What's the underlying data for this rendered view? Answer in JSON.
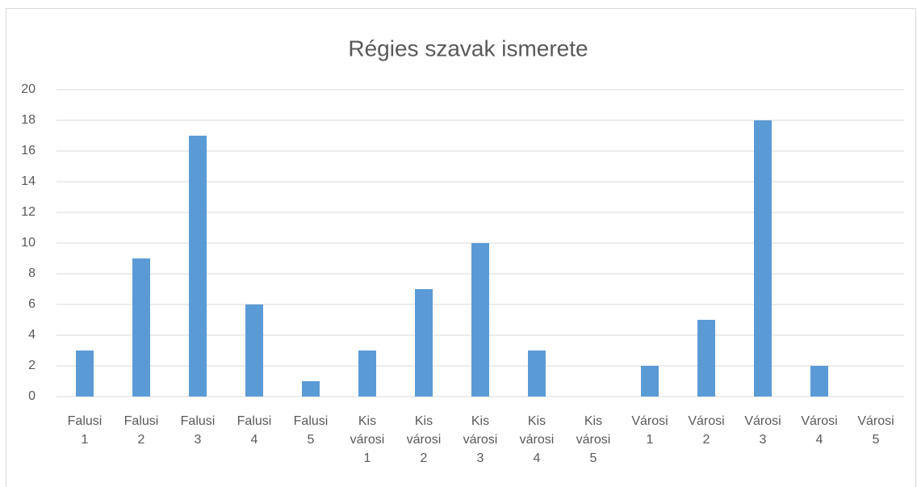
{
  "chart_data": {
    "type": "bar",
    "title": "Régies szavak ismerete",
    "categories": [
      "Falusi 1",
      "Falusi 2",
      "Falusi 3",
      "Falusi 4",
      "Falusi 5",
      "Kis városi 1",
      "Kis városi 2",
      "Kis városi 3",
      "Kis városi 4",
      "Kis városi 5",
      "Városi 1",
      "Városi 2",
      "Városi 3",
      "Városi 4",
      "Városi 5"
    ],
    "values": [
      3,
      9,
      17,
      6,
      1,
      3,
      7,
      10,
      3,
      0,
      2,
      5,
      18,
      2,
      0
    ],
    "color": "#5b9bd5",
    "ylim": [
      0,
      20
    ],
    "yticks": [
      0,
      2,
      4,
      6,
      8,
      10,
      12,
      14,
      16,
      18,
      20
    ],
    "grid": true
  }
}
